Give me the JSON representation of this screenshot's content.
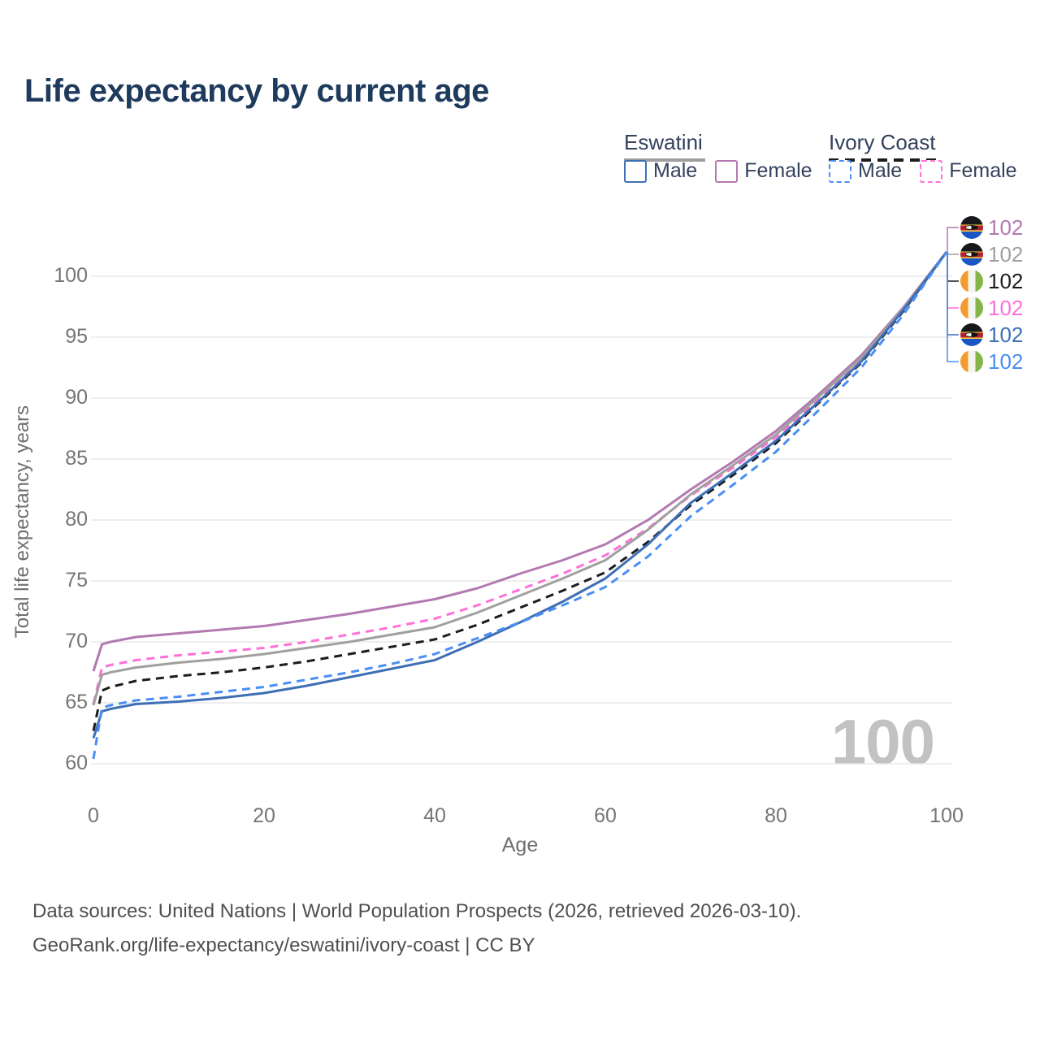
{
  "title": "Life expectancy by current age",
  "legend": {
    "groups": [
      {
        "label": "Eswatini",
        "line_style": "solid",
        "line_color": "#9e9e9e",
        "items": [
          {
            "label": "Male",
            "color": "#3e6fb5",
            "dash": false
          },
          {
            "label": "Female",
            "color": "#b279b2",
            "dash": false
          }
        ]
      },
      {
        "label": "Ivory Coast",
        "line_style": "dashed",
        "line_color": "#1c1c1c",
        "items": [
          {
            "label": "Male",
            "color": "#4a8ef5",
            "dash": true
          },
          {
            "label": "Female",
            "color": "#ff70d8",
            "dash": true
          }
        ]
      }
    ]
  },
  "chart_data": {
    "type": "line",
    "title": "Life expectancy by current age",
    "xlabel": "Age",
    "ylabel": "Total life expectancy, years",
    "xlim": [
      0,
      100
    ],
    "ylim": [
      60,
      102.5
    ],
    "xticks": [
      0,
      20,
      40,
      60,
      80,
      100
    ],
    "yticks": [
      60,
      65,
      70,
      75,
      80,
      85,
      90,
      95,
      100
    ],
    "grid": true,
    "legend_position": "top-right",
    "age_counter": "100",
    "x": [
      0,
      1,
      2,
      5,
      10,
      15,
      20,
      25,
      30,
      35,
      40,
      45,
      50,
      55,
      60,
      65,
      70,
      75,
      80,
      85,
      90,
      95,
      100
    ],
    "series": [
      {
        "id": "eswatini-female",
        "name": "Eswatini Female",
        "country": "eswatini",
        "color": "#b279b2",
        "dashed": false,
        "values": [
          67.6,
          69.8,
          70.0,
          70.4,
          70.7,
          71.0,
          71.3,
          71.8,
          72.3,
          72.9,
          73.5,
          74.4,
          75.6,
          76.7,
          78.0,
          80.0,
          82.5,
          84.8,
          87.3,
          90.3,
          93.5,
          97.5,
          102
        ]
      },
      {
        "id": "ivory-coast-female",
        "name": "Ivory Coast Female",
        "country": "ivory-coast",
        "color": "#ff70d8",
        "dashed": true,
        "values": [
          64.9,
          67.9,
          68.1,
          68.5,
          68.9,
          69.2,
          69.5,
          70.0,
          70.6,
          71.2,
          71.9,
          73.0,
          74.3,
          75.6,
          77.1,
          79.3,
          82.0,
          84.3,
          86.8,
          89.9,
          93.2,
          97.4,
          102
        ]
      },
      {
        "id": "eswatini-total",
        "name": "Eswatini",
        "country": "eswatini",
        "color": "#a0a0a0",
        "dashed": false,
        "values": [
          64.8,
          67.3,
          67.5,
          67.9,
          68.3,
          68.6,
          69.0,
          69.5,
          70.0,
          70.6,
          71.2,
          72.4,
          73.8,
          75.2,
          76.7,
          79.2,
          82.1,
          84.5,
          87.0,
          90.1,
          93.3,
          97.4,
          102
        ]
      },
      {
        "id": "ivory-coast-total",
        "name": "Ivory Coast",
        "country": "ivory-coast",
        "color": "#1c1c1c",
        "dashed": true,
        "values": [
          62.7,
          66.0,
          66.3,
          66.8,
          67.2,
          67.5,
          67.9,
          68.4,
          69.0,
          69.6,
          70.2,
          71.4,
          72.8,
          74.2,
          75.7,
          78.2,
          81.2,
          83.7,
          86.3,
          89.6,
          92.9,
          97.2,
          102
        ]
      },
      {
        "id": "eswatini-male",
        "name": "Eswatini Male",
        "country": "eswatini",
        "color": "#3e6fb5",
        "dashed": false,
        "values": [
          62.1,
          64.3,
          64.5,
          64.9,
          65.1,
          65.4,
          65.8,
          66.4,
          67.1,
          67.8,
          68.5,
          70.0,
          71.6,
          73.3,
          75.2,
          78.0,
          81.4,
          83.9,
          86.5,
          89.7,
          93.0,
          97.3,
          102
        ]
      },
      {
        "id": "ivory-coast-male",
        "name": "Ivory Coast Male",
        "country": "ivory-coast",
        "color": "#4a8ef5",
        "dashed": true,
        "values": [
          60.4,
          64.6,
          64.8,
          65.2,
          65.5,
          65.9,
          66.3,
          66.9,
          67.5,
          68.2,
          69.0,
          70.3,
          71.6,
          73.0,
          74.5,
          77.0,
          80.3,
          82.9,
          85.6,
          89.0,
          92.5,
          96.9,
          102
        ]
      }
    ],
    "end_labels": [
      {
        "flag": "eswatini",
        "series": "eswatini-female",
        "color": "#b279b2",
        "value": "102"
      },
      {
        "flag": "eswatini",
        "series": "eswatini-total",
        "color": "#a0a0a0",
        "value": "102"
      },
      {
        "flag": "ivory-coast",
        "series": "ivory-coast-total",
        "color": "#1c1c1c",
        "value": "102"
      },
      {
        "flag": "ivory-coast",
        "series": "ivory-coast-female",
        "color": "#ff70d8",
        "value": "102"
      },
      {
        "flag": "eswatini",
        "series": "eswatini-male",
        "color": "#3e6fb5",
        "value": "102"
      },
      {
        "flag": "ivory-coast",
        "series": "ivory-coast-male",
        "color": "#4a8ef5",
        "value": "102"
      }
    ]
  },
  "footer": {
    "line1": "Data sources: United Nations | World Population Prospects (2026, retrieved 2026-03-10).",
    "line2": "GeoRank.org/life-expectancy/eswatini/ivory-coast | CC BY"
  }
}
